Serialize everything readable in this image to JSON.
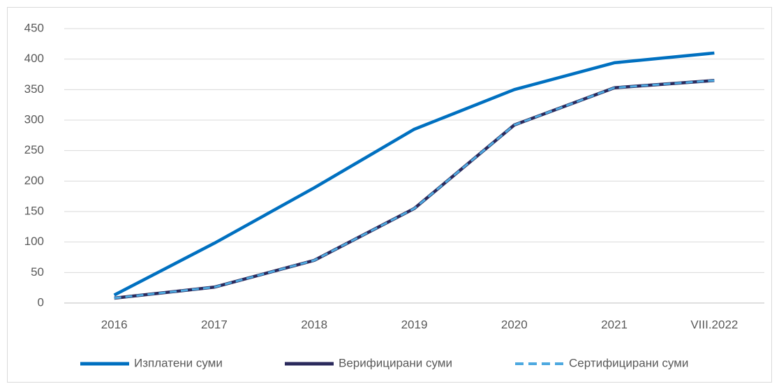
{
  "chart_data": {
    "type": "line",
    "categories": [
      "2016",
      "2017",
      "2018",
      "2019",
      "2020",
      "2021",
      "VIII.2022"
    ],
    "series": [
      {
        "name": "Изплатени суми",
        "color": "#0070c0",
        "dash": false,
        "values": [
          13,
          98,
          189,
          285,
          350,
          394,
          410
        ]
      },
      {
        "name": "Верифицирани суми",
        "color": "#2b2a5c",
        "dash": false,
        "values": [
          8,
          26,
          70,
          155,
          292,
          353,
          365
        ]
      },
      {
        "name": "Сертифицирани суми",
        "color": "#4ea9e0",
        "dash": true,
        "values": [
          8,
          26,
          70,
          155,
          292,
          353,
          365
        ]
      }
    ],
    "ylim": [
      0,
      450
    ],
    "yticks": [
      0,
      50,
      100,
      150,
      200,
      250,
      300,
      350,
      400,
      450
    ],
    "grid": true,
    "legend": "bottom"
  }
}
